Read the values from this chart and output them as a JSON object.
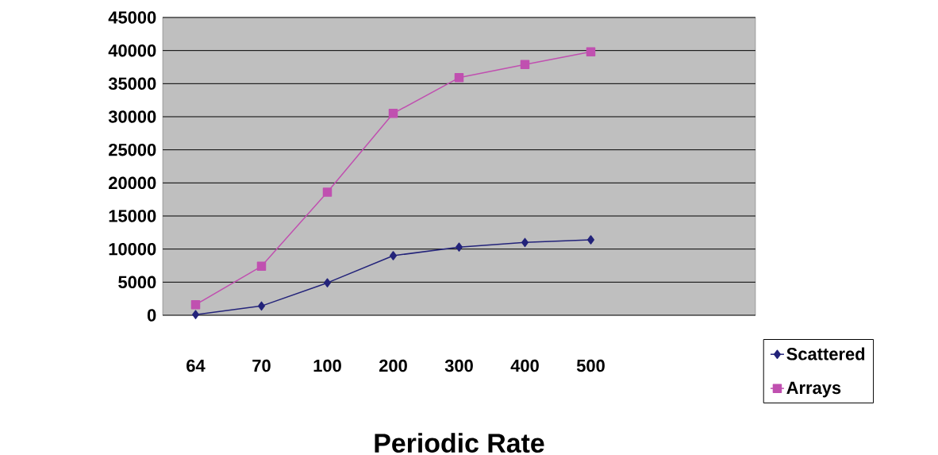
{
  "chart_data": {
    "type": "line",
    "xlabel": "Periodic Rate",
    "categories": [
      "64",
      "70",
      "100",
      "200",
      "300",
      "400",
      "500",
      null,
      null
    ],
    "series": [
      {
        "name": "Scattered",
        "color": "#23237a",
        "marker": "diamond",
        "values": [
          100,
          1400,
          4900,
          9000,
          10300,
          11000,
          11400,
          null,
          null
        ]
      },
      {
        "name": "Arrays",
        "color": "#c050b0",
        "marker": "square",
        "values": [
          1600,
          7400,
          18600,
          30500,
          35900,
          37900,
          39800,
          null,
          null
        ]
      }
    ],
    "ylim": [
      0,
      45000
    ],
    "yticks": [
      0,
      5000,
      10000,
      15000,
      20000,
      25000,
      30000,
      35000,
      40000,
      45000
    ],
    "grid": "y",
    "legend": "bottom right",
    "line_style": "solid"
  }
}
